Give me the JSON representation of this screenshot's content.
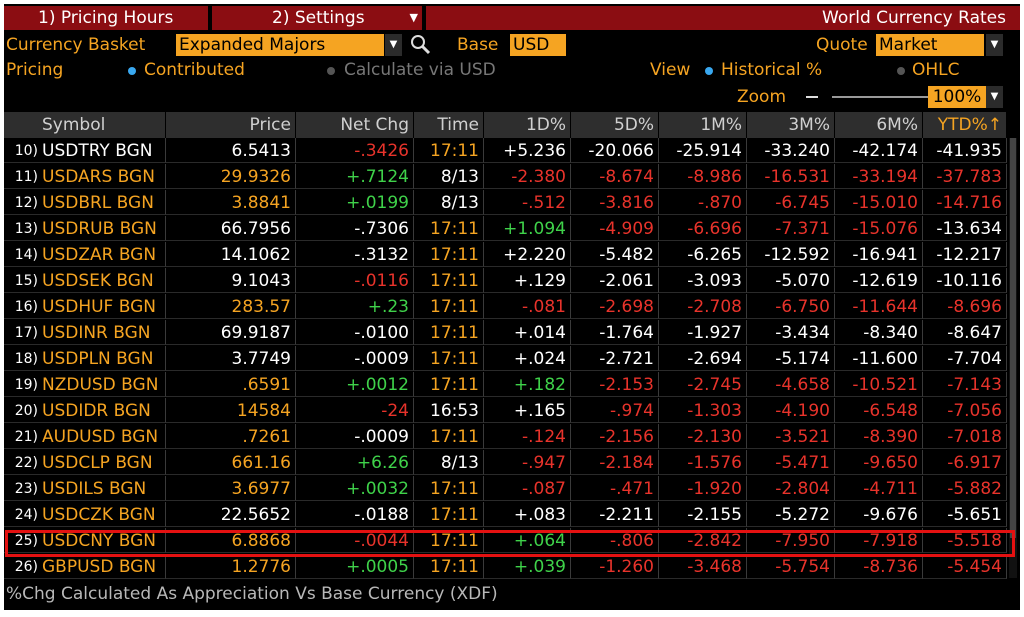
{
  "menu": {
    "tab1": "1) Pricing Hours",
    "tab2": "2) Settings",
    "title": "World Currency Rates"
  },
  "controls": {
    "basket_label": "Currency Basket",
    "basket_value": "Expanded Majors",
    "base_label": "Base",
    "base_value": "USD",
    "quote_label": "Quote",
    "quote_value": "Market",
    "pricing_label": "Pricing",
    "pricing_contributed": "Contributed",
    "pricing_calc": "Calculate via USD",
    "view_label": "View",
    "view_historical": "Historical %",
    "view_ohlc": "OHLC",
    "zoom_label": "Zoom",
    "zoom_value": "100%"
  },
  "table": {
    "headers": [
      "Symbol",
      "Price",
      "Net Chg",
      "Time",
      "1D%",
      "5D%",
      "1M%",
      "3M%",
      "6M%",
      "YTD%↑"
    ],
    "rows": [
      {
        "idx": "10)",
        "symbol": "USDTRY BGN",
        "price": "6.5413",
        "net": "-.3426",
        "time": "17:11",
        "d1": "+5.236",
        "d5": "-20.066",
        "m1": "-25.914",
        "m3": "-33.240",
        "m6": "-42.174",
        "ytd": "-41.935",
        "c": [
          "w",
          "w",
          "r",
          "o",
          "w",
          "w",
          "w",
          "w",
          "w",
          "w"
        ]
      },
      {
        "idx": "11)",
        "symbol": "USDARS BGN",
        "price": "29.9326",
        "net": "+.7124",
        "time": "8/13",
        "d1": "-2.380",
        "d5": "-8.674",
        "m1": "-8.986",
        "m3": "-16.531",
        "m6": "-33.194",
        "ytd": "-37.783",
        "c": [
          "o",
          "o",
          "g",
          "w",
          "r",
          "r",
          "r",
          "r",
          "r",
          "r"
        ]
      },
      {
        "idx": "12)",
        "symbol": "USDBRL BGN",
        "price": "3.8841",
        "net": "+.0199",
        "time": "8/13",
        "d1": "-.512",
        "d5": "-3.816",
        "m1": "-.870",
        "m3": "-6.745",
        "m6": "-15.010",
        "ytd": "-14.716",
        "c": [
          "o",
          "o",
          "g",
          "w",
          "r",
          "r",
          "r",
          "r",
          "r",
          "r"
        ]
      },
      {
        "idx": "13)",
        "symbol": "USDRUB BGN",
        "price": "66.7956",
        "net": "-.7306",
        "time": "17:11",
        "d1": "+1.094",
        "d5": "-4.909",
        "m1": "-6.696",
        "m3": "-7.371",
        "m6": "-15.076",
        "ytd": "-13.634",
        "c": [
          "o",
          "w",
          "w",
          "o",
          "g",
          "r",
          "r",
          "r",
          "r",
          "w"
        ]
      },
      {
        "idx": "14)",
        "symbol": "USDZAR BGN",
        "price": "14.1062",
        "net": "-.3132",
        "time": "17:11",
        "d1": "+2.220",
        "d5": "-5.482",
        "m1": "-6.265",
        "m3": "-12.592",
        "m6": "-16.941",
        "ytd": "-12.217",
        "c": [
          "o",
          "w",
          "w",
          "o",
          "w",
          "w",
          "w",
          "w",
          "w",
          "w"
        ]
      },
      {
        "idx": "15)",
        "symbol": "USDSEK BGN",
        "price": "9.1043",
        "net": "-.0116",
        "time": "17:11",
        "d1": "+.129",
        "d5": "-2.061",
        "m1": "-3.093",
        "m3": "-5.070",
        "m6": "-12.619",
        "ytd": "-10.116",
        "c": [
          "o",
          "w",
          "r",
          "o",
          "w",
          "w",
          "w",
          "w",
          "w",
          "w"
        ]
      },
      {
        "idx": "16)",
        "symbol": "USDHUF BGN",
        "price": "283.57",
        "net": "+.23",
        "time": "17:11",
        "d1": "-.081",
        "d5": "-2.698",
        "m1": "-2.708",
        "m3": "-6.750",
        "m6": "-11.644",
        "ytd": "-8.696",
        "c": [
          "o",
          "o",
          "g",
          "o",
          "r",
          "r",
          "r",
          "r",
          "r",
          "r"
        ]
      },
      {
        "idx": "17)",
        "symbol": "USDINR BGN",
        "price": "69.9187",
        "net": "-.0100",
        "time": "17:11",
        "d1": "+.014",
        "d5": "-1.764",
        "m1": "-1.927",
        "m3": "-3.434",
        "m6": "-8.340",
        "ytd": "-8.647",
        "c": [
          "o",
          "w",
          "w",
          "o",
          "w",
          "w",
          "w",
          "w",
          "w",
          "w"
        ]
      },
      {
        "idx": "18)",
        "symbol": "USDPLN BGN",
        "price": "3.7749",
        "net": "-.0009",
        "time": "17:11",
        "d1": "+.024",
        "d5": "-2.721",
        "m1": "-2.694",
        "m3": "-5.174",
        "m6": "-11.600",
        "ytd": "-7.704",
        "c": [
          "o",
          "w",
          "w",
          "o",
          "w",
          "w",
          "w",
          "w",
          "w",
          "w"
        ]
      },
      {
        "idx": "19)",
        "symbol": "NZDUSD BGN",
        "price": ".6591",
        "net": "+.0012",
        "time": "17:11",
        "d1": "+.182",
        "d5": "-2.153",
        "m1": "-2.745",
        "m3": "-4.658",
        "m6": "-10.521",
        "ytd": "-7.143",
        "c": [
          "o",
          "o",
          "g",
          "o",
          "g",
          "r",
          "r",
          "r",
          "r",
          "r"
        ]
      },
      {
        "idx": "20)",
        "symbol": "USDIDR BGN",
        "price": "14584",
        "net": "-24",
        "time": "16:53",
        "d1": "+.165",
        "d5": "-.974",
        "m1": "-1.303",
        "m3": "-4.190",
        "m6": "-6.548",
        "ytd": "-7.056",
        "c": [
          "o",
          "o",
          "r",
          "w",
          "w",
          "r",
          "r",
          "r",
          "r",
          "r"
        ]
      },
      {
        "idx": "21)",
        "symbol": "AUDUSD BGN",
        "price": ".7261",
        "net": "-.0009",
        "time": "17:11",
        "d1": "-.124",
        "d5": "-2.156",
        "m1": "-2.130",
        "m3": "-3.521",
        "m6": "-8.390",
        "ytd": "-7.018",
        "c": [
          "o",
          "o",
          "w",
          "o",
          "r",
          "r",
          "r",
          "r",
          "r",
          "r"
        ]
      },
      {
        "idx": "22)",
        "symbol": "USDCLP BGN",
        "price": "661.16",
        "net": "+6.26",
        "time": "8/13",
        "d1": "-.947",
        "d5": "-2.184",
        "m1": "-1.576",
        "m3": "-5.471",
        "m6": "-9.650",
        "ytd": "-6.917",
        "c": [
          "o",
          "o",
          "g",
          "w",
          "r",
          "r",
          "r",
          "r",
          "r",
          "r"
        ]
      },
      {
        "idx": "23)",
        "symbol": "USDILS BGN",
        "price": "3.6977",
        "net": "+.0032",
        "time": "17:11",
        "d1": "-.087",
        "d5": "-.471",
        "m1": "-1.920",
        "m3": "-2.804",
        "m6": "-4.711",
        "ytd": "-5.882",
        "c": [
          "o",
          "o",
          "g",
          "o",
          "r",
          "r",
          "r",
          "r",
          "r",
          "r"
        ]
      },
      {
        "idx": "24)",
        "symbol": "USDCZK BGN",
        "price": "22.5652",
        "net": "-.0188",
        "time": "17:11",
        "d1": "+.083",
        "d5": "-2.211",
        "m1": "-2.155",
        "m3": "-5.272",
        "m6": "-9.676",
        "ytd": "-5.651",
        "c": [
          "o",
          "w",
          "w",
          "o",
          "w",
          "w",
          "w",
          "w",
          "w",
          "w"
        ]
      },
      {
        "idx": "25)",
        "symbol": "USDCNY BGN",
        "price": "6.8868",
        "net": "-.0044",
        "time": "17:11",
        "d1": "+.064",
        "d5": "-.806",
        "m1": "-2.842",
        "m3": "-7.950",
        "m6": "-7.918",
        "ytd": "-5.518",
        "c": [
          "o",
          "o",
          "r",
          "o",
          "g",
          "r",
          "r",
          "r",
          "r",
          "r"
        ]
      },
      {
        "idx": "26)",
        "symbol": "GBPUSD BGN",
        "price": "1.2776",
        "net": "+.0005",
        "time": "17:11",
        "d1": "+.039",
        "d5": "-1.260",
        "m1": "-3.468",
        "m3": "-5.754",
        "m6": "-8.736",
        "ytd": "-5.454",
        "c": [
          "o",
          "o",
          "g",
          "o",
          "g",
          "r",
          "r",
          "r",
          "r",
          "r"
        ]
      }
    ]
  },
  "footer": "%Chg Calculated As Appreciation Vs Base Currency (XDF)",
  "colors": {
    "accent": "#f5a422",
    "menu": "#8b0d12",
    "positive": "#3fd24a",
    "negative": "#e8332b",
    "highlight": "#e41111"
  }
}
